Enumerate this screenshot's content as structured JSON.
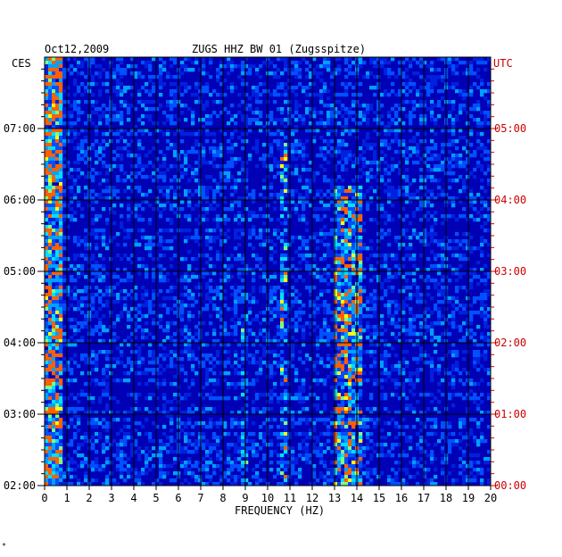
{
  "header": {
    "date": "Oct12,2009",
    "station": "ZUGS HHZ BW 01 (Zugsspitze)"
  },
  "chart_data": {
    "type": "heatmap",
    "title": "ZUGS HHZ BW 01 (Zugsspitze)",
    "date": "Oct12,2009",
    "xlabel": "FREQUENCY (HZ)",
    "xlim": [
      0,
      20
    ],
    "x_ticks": [
      "0",
      "1",
      "2",
      "3",
      "4",
      "5",
      "6",
      "7",
      "8",
      "9",
      "10",
      "11",
      "12",
      "13",
      "14",
      "15",
      "16",
      "17",
      "18",
      "19",
      "20"
    ],
    "left_axis_label": "CES",
    "left_ticks": [
      "07:00",
      "06:00",
      "05:00",
      "04:00",
      "03:00",
      "02:00"
    ],
    "right_axis_label": "UTC",
    "right_ticks": [
      "05:00",
      "04:00",
      "03:00",
      "02:00",
      "01:00",
      "00:00"
    ],
    "colors": {
      "background": "#0000b4",
      "grid": "#000000",
      "utc_text": "#cc0000",
      "low": "#0000c8",
      "mid": "#00a0ff",
      "high": "#ffff00",
      "peak": "#ff2000"
    }
  },
  "footer": {
    "mark": "*"
  }
}
